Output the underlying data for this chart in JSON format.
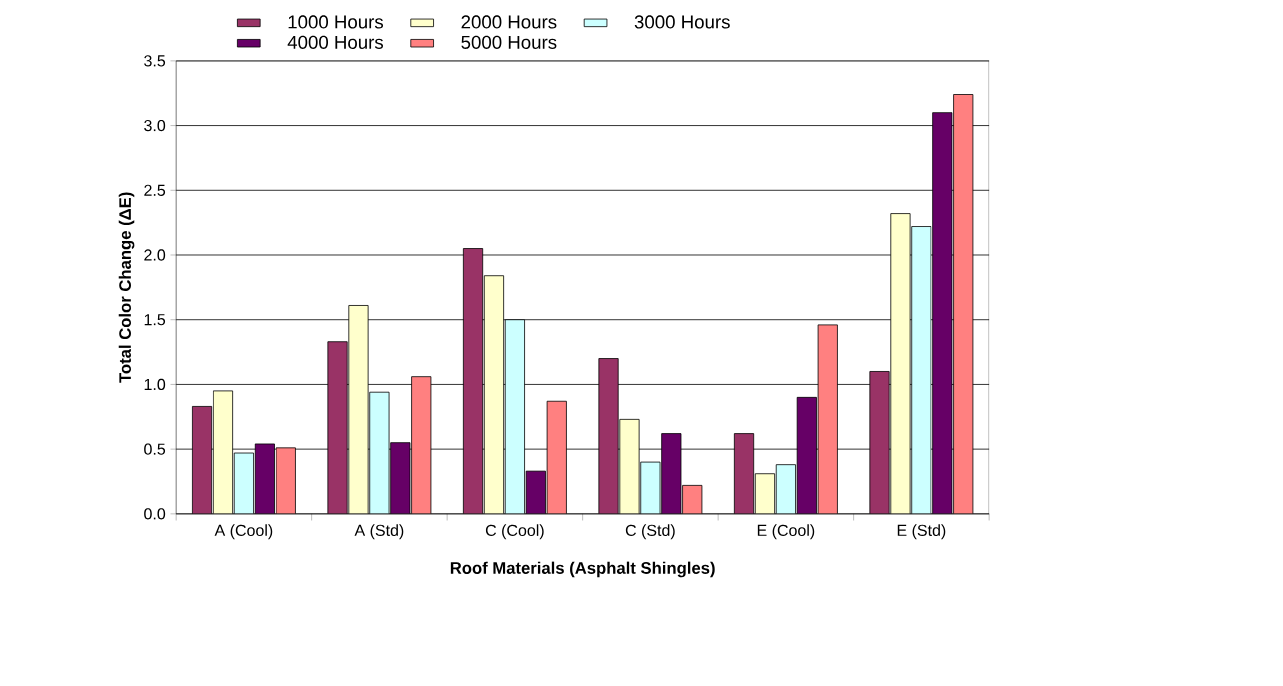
{
  "chart_data": {
    "type": "bar",
    "xlabel": "Roof Materials (Asphalt Shingles)",
    "ylabel": "Total Color Change (ΔE)",
    "categories": [
      "A (Cool)",
      "A (Std)",
      "C (Cool)",
      "C (Std)",
      "E (Cool)",
      "E (Std)"
    ],
    "series": [
      {
        "name": "1000 Hours",
        "color": "#993366",
        "values": [
          0.83,
          1.33,
          2.05,
          1.2,
          0.62,
          1.1
        ]
      },
      {
        "name": "2000 Hours",
        "color": "#ffffcc",
        "values": [
          0.95,
          1.61,
          1.84,
          0.73,
          0.31,
          2.32
        ]
      },
      {
        "name": "3000 Hours",
        "color": "#ccffff",
        "values": [
          0.47,
          0.94,
          1.5,
          0.4,
          0.38,
          2.22
        ]
      },
      {
        "name": "4000 Hours",
        "color": "#660066",
        "values": [
          0.54,
          0.55,
          0.33,
          0.62,
          0.9,
          3.1
        ]
      },
      {
        "name": "5000 Hours",
        "color": "#ff8080",
        "values": [
          0.51,
          1.06,
          0.87,
          0.22,
          1.46,
          3.24
        ]
      }
    ],
    "ylim": [
      0,
      3.5
    ],
    "yticks": [
      {
        "value": 0,
        "label": "0.0"
      },
      0.5,
      {
        "value": 1,
        "label": "1.0"
      },
      1.5,
      {
        "value": 2,
        "label": "2.0"
      },
      2.5,
      {
        "value": 3,
        "label": "3.0"
      },
      3.5
    ],
    "grid": "y",
    "legend": "top"
  }
}
